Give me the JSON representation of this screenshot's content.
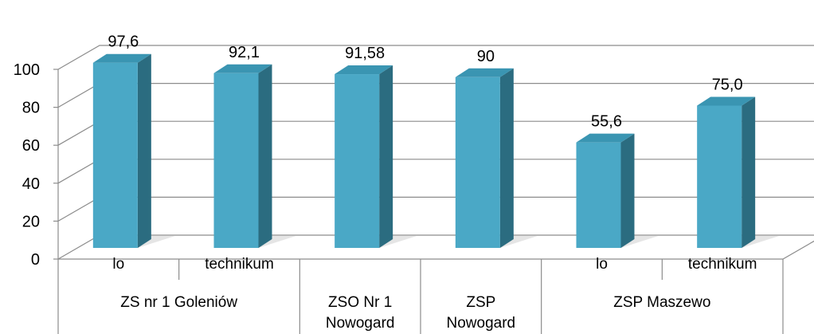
{
  "chart_data": {
    "type": "bar",
    "title": "",
    "xlabel": "",
    "ylabel": "",
    "ylim": [
      0,
      100
    ],
    "yticks": [
      0,
      20,
      40,
      60,
      80,
      100
    ],
    "grid": true,
    "legend": "none",
    "style": "3d-column",
    "colors": {
      "bar_front": "#4aa8c6",
      "bar_side": "#2b6c80",
      "bar_top": "#3a95b2",
      "wall_lines": "#8c8c8c",
      "floor_shadow": "#d0d0d0"
    },
    "categories": [
      "lo",
      "technikum",
      "",
      "",
      "lo",
      "technikum"
    ],
    "groups": [
      {
        "label": "ZS nr 1 Goleniów",
        "span": 2
      },
      {
        "label": "ZSO Nr 1 Nowogard",
        "span": 1
      },
      {
        "label": "ZSP Nowogard",
        "span": 1
      },
      {
        "label": "ZSP Maszewo",
        "span": 2
      }
    ],
    "values": [
      97.6,
      92.1,
      91.58,
      90,
      55.6,
      75.0
    ],
    "data_labels": [
      "97,6",
      "92,1",
      "91,58",
      "90",
      "55,6",
      "75,0"
    ],
    "tick_labels": [
      "0",
      "20",
      "40",
      "60",
      "80",
      "100"
    ]
  }
}
